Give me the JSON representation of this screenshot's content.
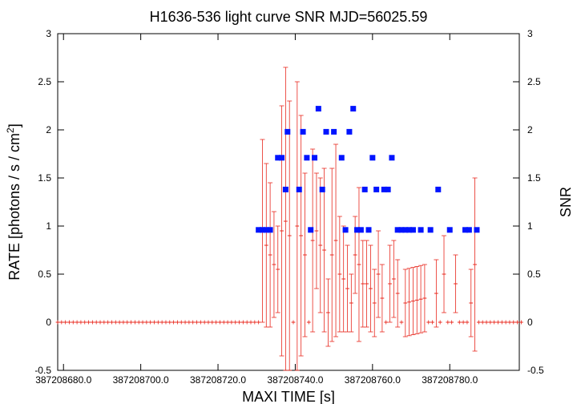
{
  "chart_data": {
    "type": "scatter",
    "title": "H1636-536 light curve  SNR MJD=56025.59",
    "xlabel": "MAXI TIME [s]",
    "ylabel": "RATE [photons / s / cm",
    "ylabel_sup": "2",
    "ylabel_close": "]",
    "y2label": "SNR",
    "xlim": [
      387208678.5,
      387208798.0
    ],
    "ylim": [
      -0.5,
      3
    ],
    "y2lim": [
      -0.5,
      3
    ],
    "x_tick_labels": [
      "387208680.0",
      "387208700.0",
      "387208720.0",
      "387208740.0",
      "387208760.0",
      "387208780.0"
    ],
    "x_ticks": [
      387208680,
      387208700,
      387208720,
      387208740,
      387208760,
      387208780
    ],
    "y_tick_labels": [
      "-0.5",
      "0",
      "0.5",
      "1",
      "1.5",
      "2",
      "2.5",
      "3"
    ],
    "y_ticks": [
      -0.5,
      0,
      0.5,
      1,
      1.5,
      2,
      2.5,
      3
    ],
    "grid": false,
    "series": [
      {
        "kind": "rate",
        "color": "#e8281e",
        "x_start": 387208678.5,
        "step": 1,
        "y": [
          0,
          0,
          0,
          0,
          0,
          0,
          0,
          0,
          0,
          0,
          0,
          0,
          0,
          0,
          0,
          0,
          0,
          0,
          0,
          0,
          0,
          0,
          0,
          0,
          0,
          0,
          0,
          0,
          0,
          0,
          0,
          0,
          0,
          0,
          0,
          0,
          0,
          0,
          0,
          0,
          0,
          0,
          0,
          0,
          0,
          0,
          0,
          0,
          0,
          0,
          0,
          0,
          0,
          0.95,
          0.8,
          0.7,
          0.6,
          0.55,
          0.95,
          1.05,
          0.9,
          0,
          1.0,
          0.9,
          0.7,
          0,
          0.85,
          0.95,
          0.8,
          0.75,
          0.1,
          0.7,
          0.85,
          0.5,
          0.45,
          0.35,
          0.2,
          0.7,
          0.6,
          0.4,
          0.4,
          0.35,
          0.2,
          0.5,
          0.25,
          0,
          0.4,
          0.45,
          0.3,
          0,
          0.2,
          0.21,
          0.22,
          0.23,
          0.24,
          0.25,
          0,
          0,
          0.3,
          0,
          0.5,
          0,
          0,
          0.4,
          0,
          0,
          0,
          0.2,
          0.6,
          0,
          0,
          0,
          0,
          0,
          0,
          0,
          0,
          0,
          0,
          0,
          0
        ],
        "err": [
          0,
          0,
          0,
          0,
          0,
          0,
          0,
          0,
          0,
          0,
          0,
          0,
          0,
          0,
          0,
          0,
          0,
          0,
          0,
          0,
          0,
          0,
          0,
          0,
          0,
          0,
          0,
          0,
          0,
          0,
          0,
          0,
          0,
          0,
          0,
          0,
          0,
          0,
          0,
          0,
          0,
          0,
          0,
          0,
          0,
          0,
          0,
          0,
          0,
          0,
          0,
          0,
          0,
          0.95,
          0.85,
          0.75,
          0.55,
          0.45,
          1.3,
          1.6,
          1.4,
          0,
          1.5,
          1.25,
          0.85,
          0,
          0.95,
          0.6,
          0.7,
          0.85,
          0.35,
          0.9,
          1.0,
          0.6,
          0.55,
          0.45,
          0.3,
          0.4,
          0.8,
          0.45,
          0.45,
          0.45,
          0.35,
          0.45,
          0.35,
          0,
          0.4,
          0.4,
          0.35,
          0,
          0.35,
          0.35,
          0.35,
          0.35,
          0.35,
          0.35,
          0,
          0,
          0.35,
          0,
          0.4,
          0,
          0,
          0.3,
          0,
          0,
          0,
          0.35,
          0.9,
          0,
          0,
          0,
          0,
          0,
          0,
          0,
          0,
          0,
          0,
          0,
          0
        ]
      },
      {
        "kind": "snr",
        "color": "#0014ff",
        "points": [
          [
            387208730.5,
            0.96
          ],
          [
            387208731.5,
            0.96
          ],
          [
            387208732.5,
            0.96
          ],
          [
            387208733.5,
            0.96
          ],
          [
            387208735.5,
            1.71
          ],
          [
            387208736.5,
            1.71
          ],
          [
            387208737.5,
            1.38
          ],
          [
            387208738.0,
            1.98
          ],
          [
            387208741.0,
            1.38
          ],
          [
            387208742.0,
            1.98
          ],
          [
            387208743.0,
            1.71
          ],
          [
            387208744.0,
            0.96
          ],
          [
            387208745.0,
            1.71
          ],
          [
            387208746.0,
            2.22
          ],
          [
            387208747.0,
            1.38
          ],
          [
            387208748.0,
            1.98
          ],
          [
            387208750.0,
            1.98
          ],
          [
            387208752.0,
            1.71
          ],
          [
            387208753.0,
            0.96
          ],
          [
            387208754.0,
            1.98
          ],
          [
            387208755.0,
            2.22
          ],
          [
            387208756.0,
            0.96
          ],
          [
            387208757.0,
            0.96
          ],
          [
            387208758.0,
            1.38
          ],
          [
            387208759.0,
            0.96
          ],
          [
            387208760.0,
            1.71
          ],
          [
            387208761.0,
            1.38
          ],
          [
            387208763.0,
            1.38
          ],
          [
            387208764.0,
            1.38
          ],
          [
            387208765.0,
            1.71
          ],
          [
            387208766.5,
            0.96
          ],
          [
            387208767.5,
            0.96
          ],
          [
            387208768.5,
            0.96
          ],
          [
            387208769.5,
            0.96
          ],
          [
            387208770.5,
            0.96
          ],
          [
            387208772.5,
            0.96
          ],
          [
            387208775.0,
            0.96
          ],
          [
            387208777.0,
            1.38
          ],
          [
            387208780.0,
            0.96
          ],
          [
            387208784.0,
            0.96
          ],
          [
            387208785.0,
            0.96
          ],
          [
            387208787.0,
            0.96
          ]
        ]
      }
    ]
  }
}
